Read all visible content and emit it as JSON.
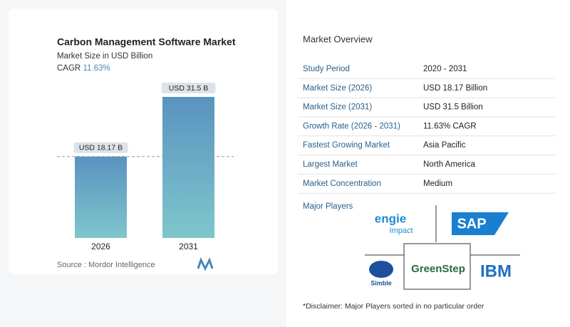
{
  "chart_data": {
    "type": "bar",
    "title": "Carbon Management Software Market",
    "subtitle": "Market Size in USD Billion",
    "cagr_label": "CAGR",
    "cagr_value": "11.63%",
    "categories": [
      "2026",
      "2031"
    ],
    "values": [
      18.17,
      31.5
    ],
    "value_labels": [
      "USD 18.17 B",
      "USD 31.5 B"
    ],
    "source": "Source :  Mordor Intelligence"
  },
  "overview": {
    "title": "Market Overview",
    "rows": [
      [
        "Study Period",
        "2020 - 2031"
      ],
      [
        "Market Size (2026)",
        "USD 18.17 Billion"
      ],
      [
        "Market Size (2031)",
        "USD 31.5 Billion"
      ],
      [
        "Growth Rate (2026 - 2031)",
        "11.63% CAGR"
      ],
      [
        "Fastest Growing Market",
        "Asia Pacific"
      ],
      [
        "Largest Market",
        "North America"
      ],
      [
        "Market Concentration",
        "Medium"
      ]
    ],
    "players_title": "Major Players",
    "players": [
      "engie",
      "Impact",
      "SAP",
      "Simble",
      "GreenStep",
      "IBM"
    ],
    "disclaimer": "*Disclaimer: Major Players sorted in no particular order"
  }
}
